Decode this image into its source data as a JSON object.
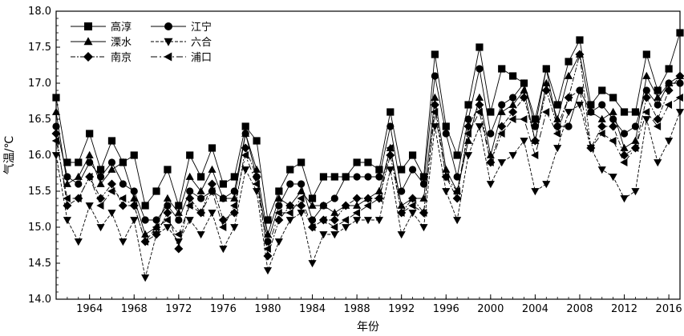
{
  "chart_data": {
    "type": "line",
    "title": "",
    "xlabel": "年份",
    "ylabel": "气温/℃",
    "xlim": [
      1961,
      2017
    ],
    "ylim": [
      14.0,
      18.0
    ],
    "x_ticks": [
      1964,
      1968,
      1972,
      1976,
      1980,
      1984,
      1988,
      1992,
      1996,
      2000,
      2004,
      2008,
      2012,
      2016
    ],
    "y_ticks": [
      "14.0",
      "14.5",
      "15.0",
      "15.5",
      "16.0",
      "16.5",
      "17.0",
      "17.5",
      "18.0"
    ],
    "grid": false,
    "legend_position": "top-left",
    "x": [
      1961,
      1962,
      1963,
      1964,
      1965,
      1966,
      1967,
      1968,
      1969,
      1970,
      1971,
      1972,
      1973,
      1974,
      1975,
      1976,
      1977,
      1978,
      1979,
      1980,
      1981,
      1982,
      1983,
      1984,
      1985,
      1986,
      1987,
      1988,
      1989,
      1990,
      1991,
      1992,
      1993,
      1994,
      1995,
      1996,
      1997,
      1998,
      1999,
      2000,
      2001,
      2002,
      2003,
      2004,
      2005,
      2006,
      2007,
      2008,
      2009,
      2010,
      2011,
      2012,
      2013,
      2014,
      2015,
      2016,
      2017
    ],
    "series": [
      {
        "name": "高淳",
        "marker": "square",
        "dash": "",
        "values": [
          16.8,
          15.9,
          15.9,
          16.3,
          15.8,
          16.2,
          15.9,
          16.0,
          15.3,
          15.5,
          15.8,
          15.3,
          16.0,
          15.7,
          16.1,
          15.6,
          15.7,
          16.4,
          16.2,
          15.1,
          15.5,
          15.8,
          15.9,
          15.4,
          15.7,
          15.7,
          15.7,
          15.9,
          15.9,
          15.8,
          16.6,
          15.8,
          16.0,
          15.7,
          17.4,
          16.4,
          16.0,
          16.7,
          17.5,
          16.6,
          17.2,
          17.1,
          17.0,
          16.5,
          17.2,
          16.7,
          17.3,
          17.6,
          16.7,
          16.9,
          16.8,
          16.6,
          16.6,
          17.4,
          16.9,
          17.2,
          17.7
        ]
      },
      {
        "name": "江宁",
        "marker": "circle",
        "dash": "",
        "values": [
          16.4,
          15.7,
          15.6,
          15.9,
          15.7,
          15.9,
          15.6,
          15.5,
          15.1,
          15.1,
          15.3,
          15.1,
          15.5,
          15.4,
          15.5,
          15.4,
          15.5,
          16.3,
          15.7,
          14.8,
          15.3,
          15.6,
          15.6,
          15.1,
          15.3,
          15.4,
          15.7,
          15.7,
          15.7,
          15.7,
          16.4,
          15.5,
          15.8,
          15.6,
          17.1,
          16.3,
          15.7,
          16.5,
          17.2,
          16.3,
          16.7,
          16.8,
          17.0,
          16.4,
          17.2,
          16.4,
          16.4,
          16.9,
          16.6,
          16.7,
          16.5,
          16.3,
          16.4,
          16.9,
          16.7,
          17.0,
          17.0
        ]
      },
      {
        "name": "溧水",
        "marker": "triangle-up",
        "dash": "",
        "values": [
          16.6,
          15.6,
          15.7,
          16.0,
          15.6,
          15.8,
          15.9,
          15.4,
          14.9,
          15.0,
          15.4,
          15.2,
          15.7,
          15.5,
          15.8,
          15.4,
          15.4,
          16.3,
          15.8,
          14.9,
          15.4,
          15.3,
          15.5,
          15.3,
          15.3,
          15.2,
          15.3,
          15.3,
          15.4,
          15.5,
          16.1,
          15.3,
          15.4,
          15.4,
          16.8,
          15.8,
          15.5,
          16.2,
          16.8,
          16.0,
          16.6,
          16.7,
          16.9,
          16.2,
          17.0,
          16.5,
          17.1,
          17.4,
          16.6,
          16.5,
          16.6,
          16.1,
          16.2,
          17.1,
          16.8,
          17.0,
          17.1
        ]
      },
      {
        "name": "六合",
        "marker": "triangle-down",
        "dash": "4,2",
        "values": [
          16.0,
          15.1,
          14.8,
          15.3,
          15.0,
          15.2,
          14.8,
          15.1,
          14.3,
          14.9,
          15.0,
          14.8,
          15.1,
          14.9,
          15.2,
          14.7,
          15.0,
          15.8,
          15.5,
          14.4,
          14.8,
          15.1,
          15.2,
          14.5,
          14.9,
          14.9,
          15.0,
          15.1,
          15.1,
          15.1,
          15.8,
          14.9,
          15.2,
          15.0,
          16.4,
          15.5,
          15.1,
          16.0,
          16.4,
          15.6,
          15.9,
          16.0,
          16.2,
          15.5,
          15.6,
          16.1,
          16.6,
          16.7,
          16.1,
          15.8,
          15.7,
          15.4,
          15.5,
          16.5,
          15.9,
          16.2,
          16.6
        ]
      },
      {
        "name": "南京",
        "marker": "diamond",
        "dash": "6,2,2,2",
        "values": [
          16.3,
          15.3,
          15.4,
          15.7,
          15.4,
          15.6,
          15.3,
          15.3,
          14.8,
          14.9,
          15.2,
          14.7,
          15.4,
          15.2,
          15.6,
          15.1,
          15.2,
          16.1,
          15.7,
          14.6,
          15.1,
          15.3,
          15.3,
          15.0,
          15.1,
          15.1,
          15.3,
          15.4,
          15.4,
          15.4,
          16.0,
          15.2,
          15.4,
          15.2,
          16.7,
          15.7,
          15.4,
          16.4,
          16.7,
          15.9,
          16.4,
          16.6,
          16.8,
          16.2,
          16.9,
          16.4,
          16.8,
          17.4,
          16.1,
          16.4,
          16.4,
          16.0,
          16.1,
          16.8,
          16.5,
          16.9,
          17.1
        ]
      },
      {
        "name": "浦口",
        "marker": "triangle-left",
        "dash": "8,3,2,3",
        "values": [
          16.2,
          15.4,
          15.4,
          15.7,
          15.3,
          15.5,
          15.4,
          15.3,
          14.8,
          15.0,
          15.1,
          14.9,
          15.3,
          15.2,
          15.5,
          15.0,
          15.3,
          16.0,
          15.6,
          14.7,
          15.2,
          15.2,
          15.4,
          15.0,
          15.1,
          15.0,
          15.1,
          15.2,
          15.3,
          15.4,
          16.1,
          15.2,
          15.3,
          15.2,
          16.6,
          15.7,
          15.5,
          16.3,
          16.6,
          15.9,
          16.3,
          16.5,
          16.5,
          16.0,
          16.6,
          16.3,
          16.8,
          16.9,
          16.1,
          16.3,
          16.2,
          15.9,
          16.1,
          16.6,
          16.4,
          16.7,
          16.8
        ]
      }
    ]
  }
}
